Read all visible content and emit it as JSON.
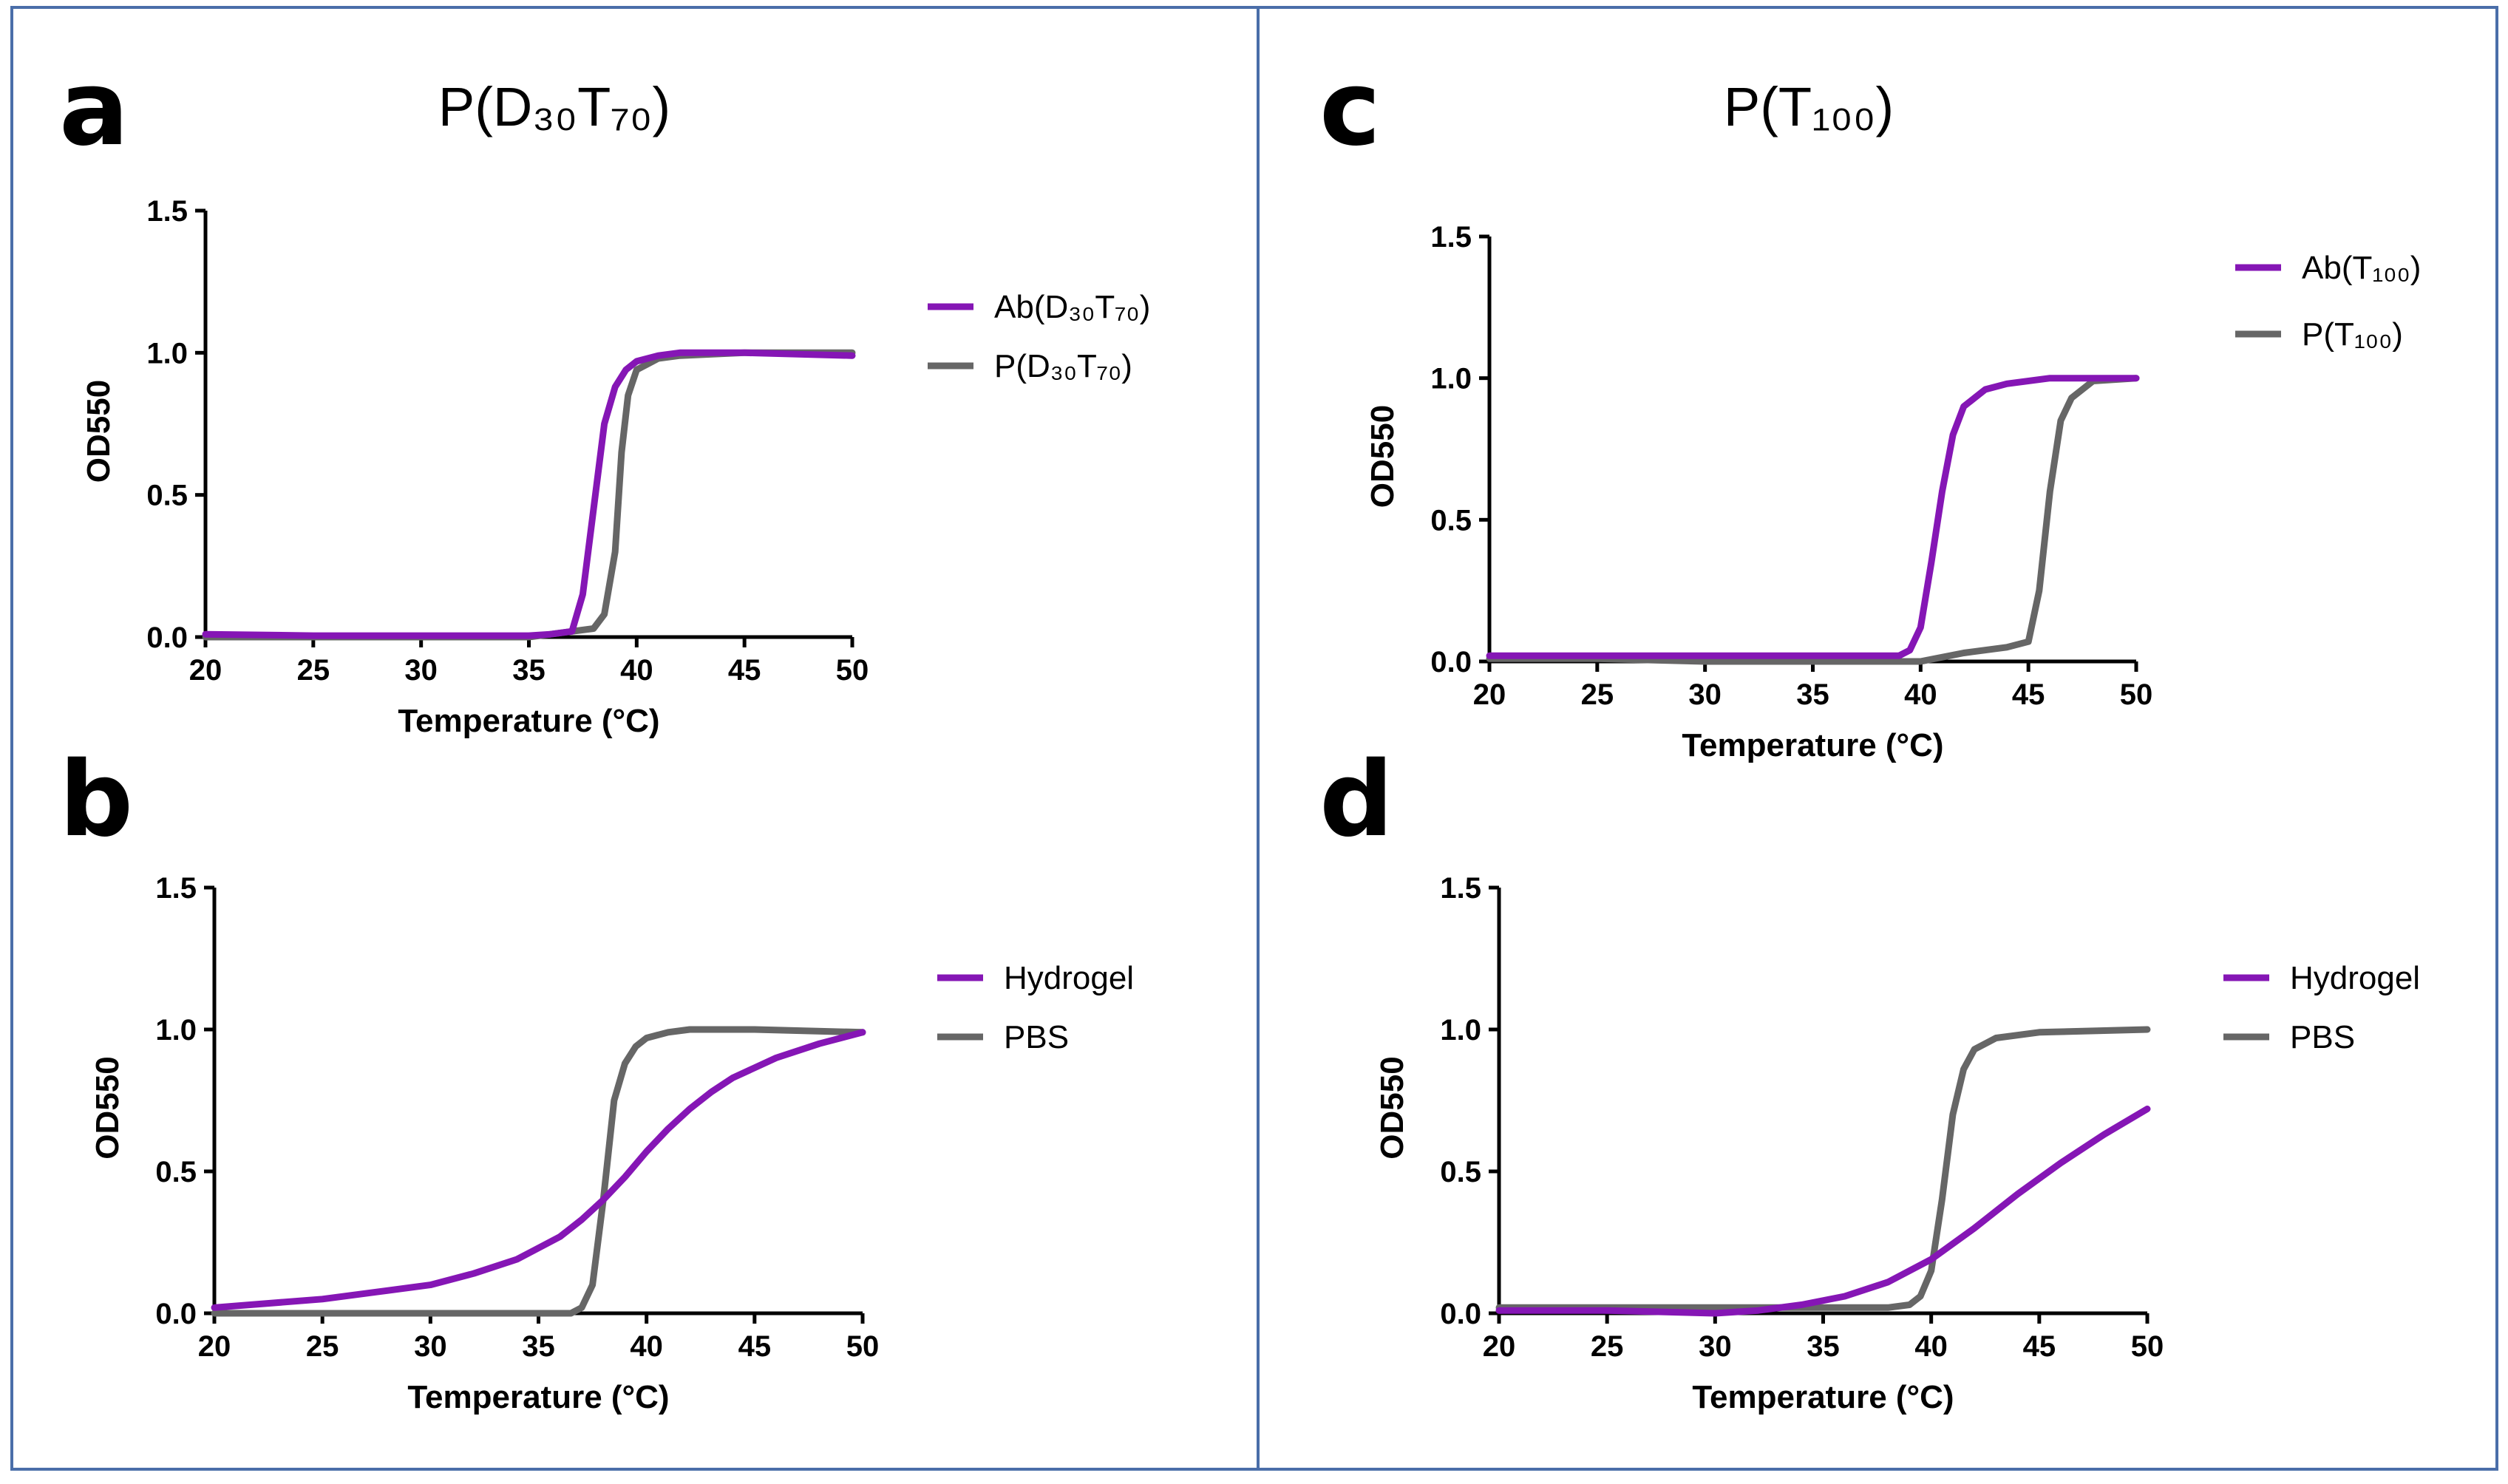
{
  "chart_data": [
    {
      "panel": "a",
      "type": "line",
      "title": "P(D₃₀T₇₀)",
      "xlabel": "Temperature (°C)",
      "ylabel": "OD550",
      "xlim": [
        20,
        50
      ],
      "ylim": [
        0,
        1.5
      ],
      "xticks": [
        "20",
        "25",
        "30",
        "35",
        "40",
        "45",
        "50"
      ],
      "yticks": [
        "0.0",
        "0.5",
        "1.0",
        "1.5"
      ],
      "legend": "right",
      "series": [
        {
          "name": "Ab(D₃₀T₇₀)",
          "color": "#8516b5",
          "x": [
            20,
            25,
            30,
            35,
            36,
            37,
            37.5,
            38,
            38.5,
            39,
            39.5,
            40,
            41,
            42,
            45,
            50
          ],
          "y": [
            0.01,
            0.005,
            0.005,
            0.005,
            0.01,
            0.02,
            0.15,
            0.45,
            0.75,
            0.88,
            0.94,
            0.97,
            0.99,
            1.0,
            1.0,
            0.99
          ]
        },
        {
          "name": "P(D₃₀T₇₀)",
          "color": "#666666",
          "x": [
            20,
            25,
            30,
            35,
            36,
            37,
            38,
            38.5,
            39,
            39.3,
            39.6,
            40,
            41,
            42,
            45,
            50
          ],
          "y": [
            0.0,
            0.0,
            0.0,
            0.0,
            0.01,
            0.02,
            0.03,
            0.08,
            0.3,
            0.65,
            0.85,
            0.94,
            0.98,
            0.99,
            1.0,
            1.0
          ]
        }
      ]
    },
    {
      "panel": "b",
      "type": "line",
      "title": "",
      "xlabel": "Temperature (°C)",
      "ylabel": "OD550",
      "xlim": [
        20,
        50
      ],
      "ylim": [
        0,
        1.5
      ],
      "xticks": [
        "20",
        "25",
        "30",
        "35",
        "40",
        "45",
        "50"
      ],
      "yticks": [
        "0.0",
        "0.5",
        "1.0",
        "1.5"
      ],
      "legend": "right",
      "series": [
        {
          "name": "Hydrogel",
          "color": "#8516b5",
          "x": [
            20,
            25,
            28,
            30,
            32,
            34,
            35,
            36,
            37,
            38,
            39,
            40,
            41,
            42,
            43,
            44,
            46,
            48,
            50
          ],
          "y": [
            0.02,
            0.05,
            0.08,
            0.1,
            0.14,
            0.19,
            0.23,
            0.27,
            0.33,
            0.4,
            0.48,
            0.57,
            0.65,
            0.72,
            0.78,
            0.83,
            0.9,
            0.95,
            0.99
          ]
        },
        {
          "name": "PBS",
          "color": "#666666",
          "x": [
            20,
            25,
            30,
            35,
            36.5,
            37,
            37.5,
            38,
            38.5,
            39,
            39.5,
            40,
            41,
            42,
            45,
            50
          ],
          "y": [
            0.0,
            0.0,
            0.0,
            0.0,
            0.0,
            0.02,
            0.1,
            0.4,
            0.75,
            0.88,
            0.94,
            0.97,
            0.99,
            1.0,
            1.0,
            0.99
          ]
        }
      ]
    },
    {
      "panel": "c",
      "type": "line",
      "title": "P(T₁₀₀)",
      "xlabel": "Temperature (°C)",
      "ylabel": "OD550",
      "xlim": [
        20,
        50
      ],
      "ylim": [
        0,
        1.5
      ],
      "xticks": [
        "20",
        "25",
        "30",
        "35",
        "40",
        "45",
        "50"
      ],
      "yticks": [
        "0.0",
        "0.5",
        "1.0",
        "1.5"
      ],
      "legend": "right",
      "series": [
        {
          "name": "Ab(T₁₀₀)",
          "color": "#8516b5",
          "x": [
            20,
            25,
            30,
            35,
            38,
            39,
            39.5,
            40,
            40.5,
            41,
            41.5,
            42,
            43,
            44,
            46,
            50
          ],
          "y": [
            0.02,
            0.02,
            0.02,
            0.02,
            0.02,
            0.02,
            0.04,
            0.12,
            0.35,
            0.6,
            0.8,
            0.9,
            0.96,
            0.98,
            1.0,
            1.0
          ]
        },
        {
          "name": "P(T₁₀₀)",
          "color": "#666666",
          "x": [
            20,
            25,
            30,
            35,
            38,
            40,
            42,
            44,
            45,
            45.5,
            46,
            46.5,
            47,
            48,
            50
          ],
          "y": [
            0.01,
            0.01,
            0.0,
            0.0,
            0.0,
            0.0,
            0.03,
            0.05,
            0.07,
            0.25,
            0.6,
            0.85,
            0.93,
            0.99,
            1.0
          ]
        }
      ]
    },
    {
      "panel": "d",
      "type": "line",
      "title": "",
      "xlabel": "Temperature (°C)",
      "ylabel": "OD550",
      "xlim": [
        20,
        50
      ],
      "ylim": [
        0,
        1.5
      ],
      "xticks": [
        "20",
        "25",
        "30",
        "35",
        "40",
        "45",
        "50"
      ],
      "yticks": [
        "0.0",
        "0.5",
        "1.0",
        "1.5"
      ],
      "legend": "right",
      "series": [
        {
          "name": "Hydrogel",
          "color": "#8516b5",
          "x": [
            20,
            25,
            30,
            32,
            34,
            36,
            38,
            40,
            42,
            44,
            46,
            48,
            50
          ],
          "y": [
            0.01,
            0.01,
            0.0,
            0.01,
            0.03,
            0.06,
            0.11,
            0.19,
            0.3,
            0.42,
            0.53,
            0.63,
            0.72
          ]
        },
        {
          "name": "PBS",
          "color": "#666666",
          "x": [
            20,
            25,
            30,
            35,
            38,
            39,
            39.5,
            40,
            40.5,
            41,
            41.5,
            42,
            43,
            45,
            50
          ],
          "y": [
            0.02,
            0.02,
            0.02,
            0.02,
            0.02,
            0.03,
            0.06,
            0.15,
            0.4,
            0.7,
            0.86,
            0.93,
            0.97,
            0.99,
            1.0
          ]
        }
      ]
    }
  ]
}
